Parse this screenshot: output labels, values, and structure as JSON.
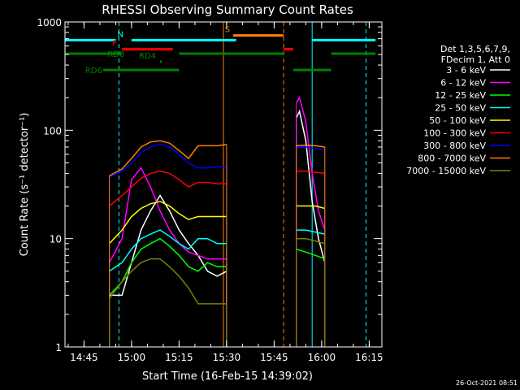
{
  "chart_data": {
    "type": "line",
    "title": "RHESSI Observing Summary Count Rates",
    "xlabel": "Start Time (16-Feb-15 14:39:02)",
    "ylabel": "Count Rate (s⁻¹ detector⁻¹)",
    "y_scale": "log",
    "ylim": [
      1,
      1000
    ],
    "xlim": [
      "14:39",
      "16:19"
    ],
    "x_ticks": [
      "14:45",
      "15:00",
      "15:15",
      "15:30",
      "15:45",
      "16:00",
      "16:15"
    ],
    "y_ticks": [
      "1",
      "10",
      "100",
      "1000"
    ],
    "legend_header": [
      "Det 1,3,5,6,7,9,",
      "FDecim 1, Att 0"
    ],
    "legend_position": "right",
    "timestamp": "26-Oct-2021 08:51",
    "series": [
      {
        "name": "3 - 6 keV",
        "color": "#ffffff",
        "x": [
          "14:53",
          "14:57",
          "15:00",
          "15:03",
          "15:06",
          "15:09",
          "15:12",
          "15:15",
          "15:18",
          "15:21",
          "15:24",
          "15:27",
          "15:30",
          "15:52",
          "15:53",
          "15:55",
          "15:57",
          "15:59",
          "16:01"
        ],
        "y": [
          3,
          3,
          6,
          12,
          18,
          25,
          18,
          12,
          9,
          7,
          5,
          4.5,
          5,
          130,
          150,
          80,
          22,
          10,
          6
        ]
      },
      {
        "name": "6 - 12 keV",
        "color": "#ff00ff",
        "x": [
          "14:53",
          "14:57",
          "15:00",
          "15:03",
          "15:06",
          "15:09",
          "15:12",
          "15:15",
          "15:18",
          "15:21",
          "15:24",
          "15:27",
          "15:30",
          "15:52",
          "15:53",
          "15:55",
          "15:57",
          "15:59",
          "16:01"
        ],
        "y": [
          6,
          10,
          35,
          45,
          30,
          18,
          12,
          9,
          7.5,
          7,
          6.5,
          6.5,
          6.5,
          180,
          200,
          120,
          40,
          18,
          12
        ]
      },
      {
        "name": "12 - 25 keV",
        "color": "#00ff00",
        "x": [
          "14:53",
          "14:57",
          "15:00",
          "15:03",
          "15:06",
          "15:09",
          "15:12",
          "15:15",
          "15:18",
          "15:21",
          "15:24",
          "15:27",
          "15:30",
          "15:52",
          "15:55",
          "15:58",
          "16:01"
        ],
        "y": [
          3,
          4,
          6,
          8,
          9,
          10,
          8.5,
          7,
          5.5,
          5,
          6,
          5.5,
          5.5,
          8,
          7.5,
          7,
          6.5
        ]
      },
      {
        "name": "25 - 50 keV",
        "color": "#00ffff",
        "x": [
          "14:53",
          "14:57",
          "15:00",
          "15:03",
          "15:06",
          "15:09",
          "15:12",
          "15:15",
          "15:18",
          "15:21",
          "15:24",
          "15:27",
          "15:30",
          "15:52",
          "15:55",
          "15:58",
          "16:01"
        ],
        "y": [
          5,
          6,
          8,
          10,
          11,
          12,
          10.5,
          9,
          8,
          10,
          10,
          9,
          9,
          12,
          12,
          11.5,
          11
        ]
      },
      {
        "name": "50 - 100 keV",
        "color": "#ffff00",
        "x": [
          "14:53",
          "14:57",
          "15:00",
          "15:03",
          "15:06",
          "15:09",
          "15:12",
          "15:15",
          "15:18",
          "15:21",
          "15:24",
          "15:27",
          "15:30",
          "15:52",
          "15:55",
          "15:58",
          "16:01"
        ],
        "y": [
          9,
          12,
          16,
          19,
          21,
          22,
          20,
          17,
          15,
          16,
          16,
          16,
          16,
          20,
          20,
          20,
          19
        ]
      },
      {
        "name": "100 - 300 keV",
        "color": "#ff0000",
        "x": [
          "14:53",
          "14:57",
          "15:00",
          "15:03",
          "15:06",
          "15:09",
          "15:12",
          "15:15",
          "15:18",
          "15:21",
          "15:24",
          "15:27",
          "15:30",
          "15:52",
          "15:55",
          "15:58",
          "16:01"
        ],
        "y": [
          20,
          25,
          30,
          36,
          40,
          42,
          40,
          35,
          30,
          33,
          33,
          32,
          32,
          42,
          42,
          41,
          40
        ]
      },
      {
        "name": "300 - 800 keV",
        "color": "#0000ff",
        "x": [
          "14:53",
          "14:57",
          "15:00",
          "15:03",
          "15:06",
          "15:09",
          "15:12",
          "15:15",
          "15:18",
          "15:21",
          "15:24",
          "15:27",
          "15:30",
          "15:52",
          "15:55",
          "15:58",
          "16:01"
        ],
        "y": [
          37,
          42,
          50,
          62,
          70,
          75,
          70,
          60,
          50,
          45,
          45,
          46,
          46,
          70,
          70,
          68,
          66
        ]
      },
      {
        "name": "800 - 7000 keV",
        "color": "#ff8000",
        "x": [
          "14:53",
          "14:57",
          "15:00",
          "15:03",
          "15:06",
          "15:09",
          "15:12",
          "15:15",
          "15:18",
          "15:21",
          "15:24",
          "15:27",
          "15:30",
          "15:52",
          "15:55",
          "15:58",
          "16:01"
        ],
        "y": [
          38,
          44,
          55,
          70,
          78,
          80,
          76,
          65,
          55,
          72,
          72,
          72,
          74,
          72,
          73,
          72,
          70
        ]
      },
      {
        "name": "7000 - 15000 keV",
        "color": "#808000",
        "x": [
          "14:53",
          "14:57",
          "15:00",
          "15:03",
          "15:06",
          "15:09",
          "15:12",
          "15:15",
          "15:18",
          "15:21",
          "15:24",
          "15:27",
          "15:30",
          "15:52",
          "15:55",
          "15:58",
          "16:01"
        ],
        "y": [
          2.8,
          4,
          5,
          6,
          6.5,
          6.5,
          5.5,
          4.5,
          3.5,
          2.5,
          2.5,
          2.5,
          2.5,
          10,
          10,
          9.5,
          9
        ]
      }
    ],
    "annotations": [
      {
        "label": "N",
        "color": "#00ffff",
        "y": 680,
        "segments": [
          [
            "14:39",
            "14:55"
          ],
          [
            "15:00",
            "15:33"
          ],
          [
            "15:57",
            "16:17"
          ]
        ]
      },
      {
        "label": "S",
        "color": "#ff8000",
        "y": 750,
        "segments": [
          [
            "15:32",
            "15:48"
          ]
        ]
      },
      {
        "label": "F",
        "color": "#ff0000",
        "y": 560,
        "segments": [
          [
            "14:57",
            "15:13"
          ],
          [
            "15:48",
            "15:51"
          ]
        ]
      },
      {
        "label": "RD0",
        "color": "#008000",
        "y": 510,
        "segments": [
          [
            "14:39",
            "14:57"
          ],
          [
            "15:15",
            "15:48"
          ],
          [
            "16:03",
            "16:17"
          ]
        ]
      },
      {
        "label": "RD4",
        "color": "#008000",
        "y": 430,
        "segments": [
          [
            "15:09",
            "15:09"
          ]
        ]
      },
      {
        "label": "RD6",
        "color": "#008000",
        "y": 360,
        "segments": [
          [
            "14:51",
            "15:15"
          ],
          [
            "15:51",
            "16:03"
          ]
        ]
      }
    ],
    "vertical_lines": [
      {
        "color": "#00ffff",
        "style": "solid",
        "x": "14:39"
      },
      {
        "color": "#00ffff",
        "style": "dashed",
        "x": "14:56"
      },
      {
        "color": "#ff8000",
        "style": "solid",
        "x": "15:29"
      },
      {
        "color": "#ff8000",
        "style": "dashed",
        "x": "15:48"
      },
      {
        "color": "#00ffff",
        "style": "solid",
        "x": "15:57"
      },
      {
        "color": "#00ffff",
        "style": "dashed",
        "x": "16:14"
      }
    ]
  }
}
